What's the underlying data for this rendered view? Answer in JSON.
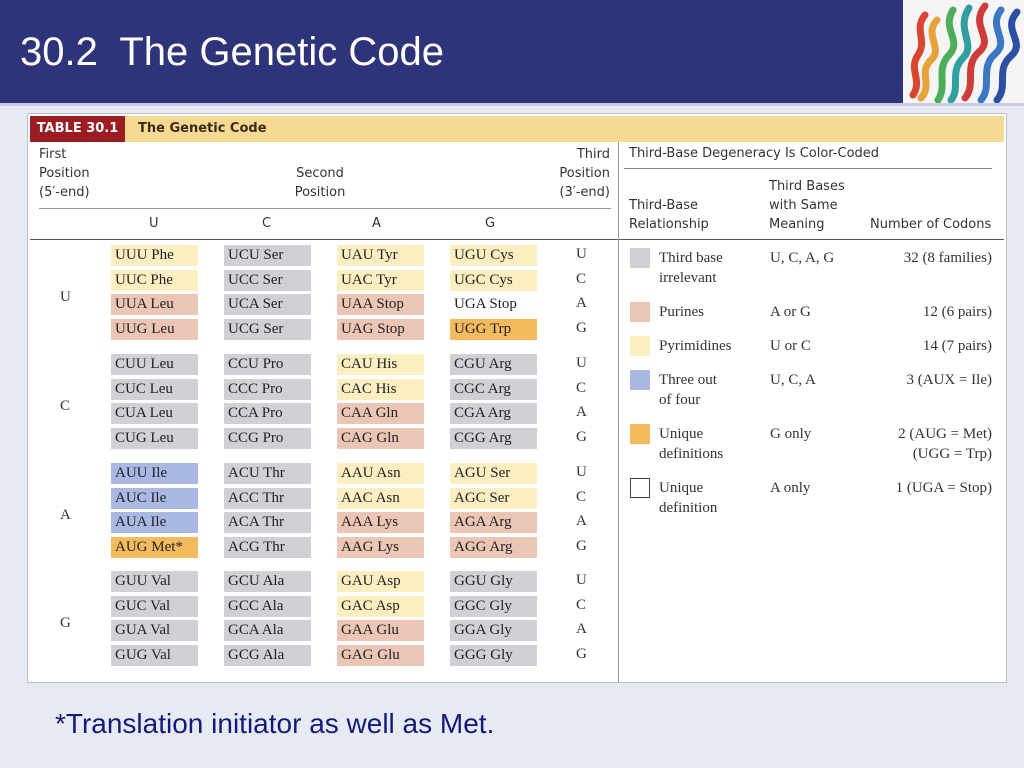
{
  "slide": {
    "title": "30.2  The Genetic Code",
    "footnote": "*Translation initiator as well as Met."
  },
  "table": {
    "tag": "TABLE 30.1",
    "name": "The Genetic Code",
    "first_position": [
      "First",
      "Position",
      "(5′-end)"
    ],
    "second_position": [
      "Second",
      "Position"
    ],
    "third_position": [
      "Third",
      "Position",
      "(3′-end)"
    ],
    "bases": [
      "U",
      "C",
      "A",
      "G"
    ],
    "rows": [
      {
        "first": "U",
        "codons": [
          [
            {
              "t": "UUU Phe",
              "c": "pyr"
            },
            {
              "t": "UCU Ser",
              "c": "irr"
            },
            {
              "t": "UAU Tyr",
              "c": "pyr"
            },
            {
              "t": "UGU Cys",
              "c": "pyr"
            }
          ],
          [
            {
              "t": "UUC Phe",
              "c": "pyr"
            },
            {
              "t": "UCC Ser",
              "c": "irr"
            },
            {
              "t": "UAC Tyr",
              "c": "pyr"
            },
            {
              "t": "UGC Cys",
              "c": "pyr"
            }
          ],
          [
            {
              "t": "UUA Leu",
              "c": "pur"
            },
            {
              "t": "UCA Ser",
              "c": "irr"
            },
            {
              "t": "UAA Stop",
              "c": "pur"
            },
            {
              "t": "UGA Stop",
              "c": "stop"
            }
          ],
          [
            {
              "t": "UUG Leu",
              "c": "pur"
            },
            {
              "t": "UCG Ser",
              "c": "irr"
            },
            {
              "t": "UAG Stop",
              "c": "pur"
            },
            {
              "t": "UGG Trp",
              "c": "uniq"
            }
          ]
        ]
      },
      {
        "first": "C",
        "codons": [
          [
            {
              "t": "CUU Leu",
              "c": "irr"
            },
            {
              "t": "CCU Pro",
              "c": "irr"
            },
            {
              "t": "CAU His",
              "c": "pyr"
            },
            {
              "t": "CGU Arg",
              "c": "irr"
            }
          ],
          [
            {
              "t": "CUC Leu",
              "c": "irr"
            },
            {
              "t": "CCC Pro",
              "c": "irr"
            },
            {
              "t": "CAC His",
              "c": "pyr"
            },
            {
              "t": "CGC Arg",
              "c": "irr"
            }
          ],
          [
            {
              "t": "CUA Leu",
              "c": "irr"
            },
            {
              "t": "CCA Pro",
              "c": "irr"
            },
            {
              "t": "CAA Gln",
              "c": "pur"
            },
            {
              "t": "CGA Arg",
              "c": "irr"
            }
          ],
          [
            {
              "t": "CUG Leu",
              "c": "irr"
            },
            {
              "t": "CCG Pro",
              "c": "irr"
            },
            {
              "t": "CAG Gln",
              "c": "pur"
            },
            {
              "t": "CGG Arg",
              "c": "irr"
            }
          ]
        ]
      },
      {
        "first": "A",
        "codons": [
          [
            {
              "t": "AUU Ile",
              "c": "three"
            },
            {
              "t": "ACU Thr",
              "c": "irr"
            },
            {
              "t": "AAU Asn",
              "c": "pyr"
            },
            {
              "t": "AGU Ser",
              "c": "pyr"
            }
          ],
          [
            {
              "t": "AUC Ile",
              "c": "three"
            },
            {
              "t": "ACC Thr",
              "c": "irr"
            },
            {
              "t": "AAC Asn",
              "c": "pyr"
            },
            {
              "t": "AGC Ser",
              "c": "pyr"
            }
          ],
          [
            {
              "t": "AUA Ile",
              "c": "three"
            },
            {
              "t": "ACA Thr",
              "c": "irr"
            },
            {
              "t": "AAA Lys",
              "c": "pur"
            },
            {
              "t": "AGA Arg",
              "c": "pur"
            }
          ],
          [
            {
              "t": "AUG Met*",
              "c": "uniq"
            },
            {
              "t": "ACG Thr",
              "c": "irr"
            },
            {
              "t": "AAG Lys",
              "c": "pur"
            },
            {
              "t": "AGG Arg",
              "c": "pur"
            }
          ]
        ]
      },
      {
        "first": "G",
        "codons": [
          [
            {
              "t": "GUU Val",
              "c": "irr"
            },
            {
              "t": "GCU Ala",
              "c": "irr"
            },
            {
              "t": "GAU Asp",
              "c": "pyr"
            },
            {
              "t": "GGU Gly",
              "c": "irr"
            }
          ],
          [
            {
              "t": "GUC Val",
              "c": "irr"
            },
            {
              "t": "GCC Ala",
              "c": "irr"
            },
            {
              "t": "GAC Asp",
              "c": "pyr"
            },
            {
              "t": "GGC Gly",
              "c": "irr"
            }
          ],
          [
            {
              "t": "GUA Val",
              "c": "irr"
            },
            {
              "t": "GCA Ala",
              "c": "irr"
            },
            {
              "t": "GAA Glu",
              "c": "pur"
            },
            {
              "t": "GGA Gly",
              "c": "irr"
            }
          ],
          [
            {
              "t": "GUG Val",
              "c": "irr"
            },
            {
              "t": "GCG Ala",
              "c": "irr"
            },
            {
              "t": "GAG Glu",
              "c": "pur"
            },
            {
              "t": "GGG Gly",
              "c": "irr"
            }
          ]
        ]
      }
    ]
  },
  "legend": {
    "title": "Third-Base Degeneracy Is Color-Coded",
    "col_relationship": [
      "Third-Base",
      "Relationship"
    ],
    "col_meaning": [
      "Third Bases",
      "with Same",
      "Meaning"
    ],
    "col_count": "Number of Codons",
    "items": [
      {
        "key": "irr",
        "relationship": [
          "Third base",
          "irrelevant"
        ],
        "meaning": "U, C, A, G",
        "codons": [
          "32 (8 families)"
        ]
      },
      {
        "key": "pur",
        "relationship": [
          "Purines"
        ],
        "meaning": "A or G",
        "codons": [
          "12 (6 pairs)"
        ]
      },
      {
        "key": "pyr",
        "relationship": [
          "Pyrimidines"
        ],
        "meaning": "U or C",
        "codons": [
          "14 (7 pairs)"
        ]
      },
      {
        "key": "three",
        "relationship": [
          "Three out",
          "of four"
        ],
        "meaning": "U, C, A",
        "codons": [
          "3 (AUX = Ile)"
        ]
      },
      {
        "key": "uniq",
        "relationship": [
          "Unique",
          "definitions"
        ],
        "meaning": "G only",
        "codons": [
          "2 (AUG = Met)",
          "(UGG = Trp)"
        ]
      },
      {
        "key": "stop",
        "relationship": [
          "Unique",
          "definition"
        ],
        "meaning": "A only",
        "codons": [
          "1 (UGA = Stop)"
        ]
      }
    ]
  },
  "colors": {
    "title_bar": "#2e3479",
    "irrelevant": "#cfd1d4",
    "purines": "#ecc6b5",
    "pyrimidines": "#fbefc2",
    "three_of_four": "#a9b9e3",
    "unique": "#f3ba5e",
    "footnote": "#151a7a"
  }
}
